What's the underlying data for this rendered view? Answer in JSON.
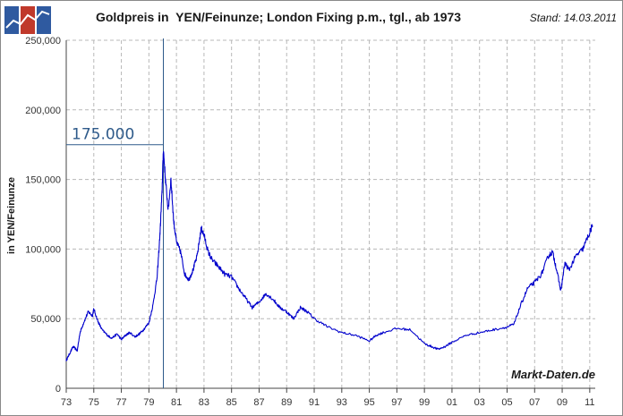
{
  "logo": {
    "name": "logo-icon",
    "colors": [
      "#2f5aa0",
      "#c0392b",
      "#2f5aa0"
    ]
  },
  "stand": "Stand: 14.03.2011",
  "watermark": "Markt-Daten.de",
  "chart_data": {
    "type": "line",
    "title": "Goldpreis in  YEN/Feinunze; London Fixing p.m., tgl., ab 1973",
    "xlabel": "",
    "ylabel": "in YEN/Feinunze",
    "xlim": [
      1973.0,
      2011.4
    ],
    "ylim": [
      0,
      250000
    ],
    "x_ticks": [
      "73",
      "75",
      "77",
      "79",
      "81",
      "83",
      "85",
      "87",
      "89",
      "91",
      "93",
      "95",
      "97",
      "99",
      "01",
      "03",
      "05",
      "07",
      "09",
      "11"
    ],
    "x_tick_years": [
      1973,
      1975,
      1977,
      1979,
      1981,
      1983,
      1985,
      1987,
      1989,
      1991,
      1993,
      1995,
      1997,
      1999,
      2001,
      2003,
      2005,
      2007,
      2009,
      2011
    ],
    "y_ticks": [
      "0",
      "50,000",
      "100,000",
      "150,000",
      "200,000",
      "250,000"
    ],
    "y_tick_values": [
      0,
      50000,
      100000,
      150000,
      200000,
      250000
    ],
    "grid": true,
    "line_color": "#0000cc",
    "annotation": {
      "label": "175.000",
      "value": 175000,
      "x": 1980.05,
      "color": "#2e5a8a"
    },
    "series": [
      {
        "name": "",
        "x": [
          1973.0,
          1973.2,
          1973.5,
          1973.8,
          1974.0,
          1974.3,
          1974.6,
          1974.9,
          1975.0,
          1975.3,
          1975.6,
          1976.0,
          1976.3,
          1976.7,
          1977.0,
          1977.3,
          1977.6,
          1978.0,
          1978.3,
          1978.6,
          1979.0,
          1979.3,
          1979.6,
          1979.8,
          1979.95,
          1980.05,
          1980.2,
          1980.4,
          1980.6,
          1980.8,
          1981.0,
          1981.3,
          1981.6,
          1981.9,
          1982.2,
          1982.5,
          1982.8,
          1983.0,
          1983.3,
          1983.6,
          1984.0,
          1984.5,
          1985.0,
          1985.5,
          1986.0,
          1986.5,
          1987.0,
          1987.5,
          1988.0,
          1988.5,
          1989.0,
          1989.5,
          1990.0,
          1990.5,
          1991.0,
          1992.0,
          1993.0,
          1994.0,
          1995.0,
          1995.5,
          1996.0,
          1997.0,
          1998.0,
          1999.0,
          1999.5,
          2000.0,
          2000.5,
          2001.0,
          2002.0,
          2003.0,
          2004.0,
          2005.0,
          2005.5,
          2006.0,
          2006.5,
          2007.0,
          2007.5,
          2008.0,
          2008.3,
          2008.6,
          2008.9,
          2009.2,
          2009.5,
          2010.0,
          2010.5,
          2011.0,
          2011.2
        ],
        "y": [
          20000,
          24000,
          30000,
          27000,
          40000,
          48000,
          55000,
          52000,
          57000,
          48000,
          42000,
          38000,
          36000,
          39000,
          35000,
          38000,
          40000,
          37000,
          39000,
          42000,
          47000,
          60000,
          80000,
          110000,
          140000,
          172000,
          150000,
          128000,
          150000,
          120000,
          105000,
          98000,
          82000,
          78000,
          85000,
          95000,
          115000,
          110000,
          98000,
          92000,
          88000,
          82000,
          80000,
          72000,
          65000,
          58000,
          62000,
          68000,
          64000,
          58000,
          55000,
          50000,
          58000,
          55000,
          50000,
          44000,
          40000,
          38000,
          34000,
          38000,
          40000,
          43000,
          42000,
          32000,
          30000,
          28000,
          30000,
          33000,
          38000,
          40000,
          42000,
          44000,
          46000,
          60000,
          72000,
          76000,
          82000,
          95000,
          98000,
          85000,
          70000,
          90000,
          85000,
          95000,
          100000,
          112000,
          117000
        ]
      }
    ]
  }
}
